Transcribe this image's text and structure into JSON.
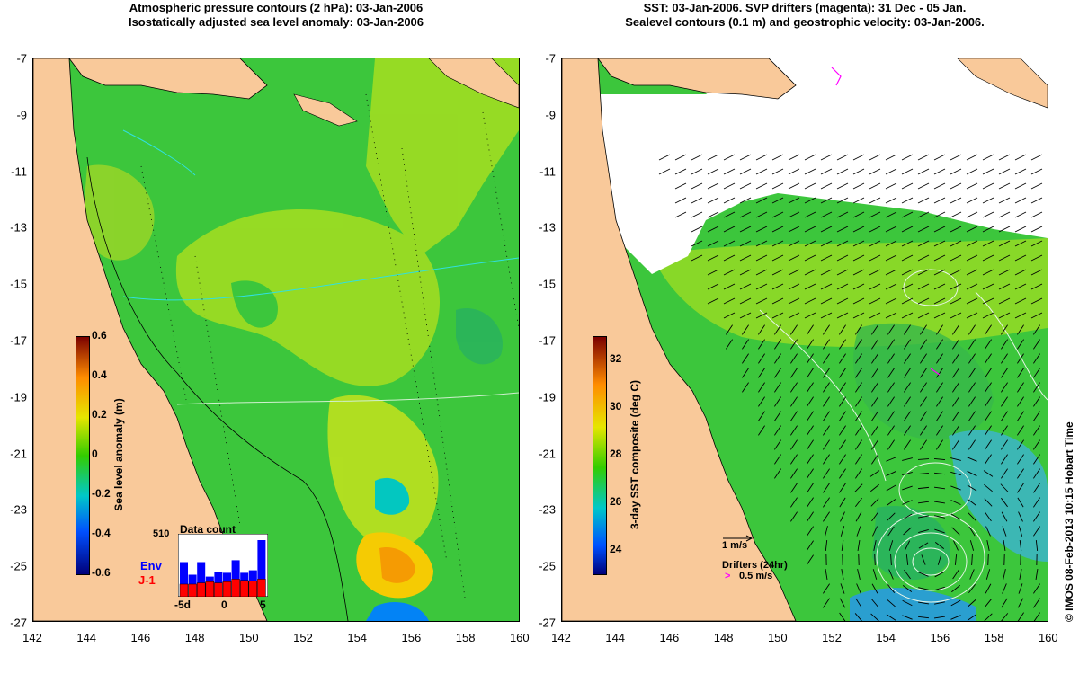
{
  "left_panel": {
    "title_line1": "Atmospheric pressure contours (2 hPa): 03-Jan-2006",
    "title_line2": "Isostatically adjusted sea level anomaly: 03-Jan-2006",
    "colorbar": {
      "label": "Sea level anomaly (m)",
      "ticks": [
        "0.6",
        "0.4",
        "0.2",
        "0",
        "-0.2",
        "-0.4",
        "-0.6"
      ],
      "range": [
        -0.6,
        0.6
      ]
    },
    "inset": {
      "title": "Data count",
      "max_label": "510",
      "legend_env": "Env",
      "legend_j1": "J-1",
      "xticks": [
        "-5d",
        "0",
        "5"
      ],
      "env_color": "#0000ff",
      "j1_color": "#ff0000",
      "env_values": [
        0.55,
        0.35,
        0.55,
        0.32,
        0.4,
        0.38,
        0.58,
        0.38,
        0.42,
        0.9
      ],
      "j1_values": [
        0.2,
        0.2,
        0.22,
        0.24,
        0.22,
        0.24,
        0.28,
        0.26,
        0.25,
        0.28
      ]
    }
  },
  "right_panel": {
    "title_line1": "SST: 03-Jan-2006. SVP drifters (magenta): 31 Dec - 05 Jan.",
    "title_line2": "Sealevel contours (0.1 m) and geostrophic velocity: 03-Jan-2006.",
    "colorbar": {
      "label": "3-day SST composite (deg C)",
      "ticks": [
        "32",
        "30",
        "28",
        "26",
        "24"
      ],
      "range": [
        23,
        33
      ]
    },
    "velocity_legend": "1 m/s",
    "drifters_label": "Drifters (24hr)",
    "drifter_speed": "0.5 m/s",
    "drifter_color": "#ff00ff"
  },
  "x_ticks": [
    "142",
    "144",
    "146",
    "148",
    "150",
    "152",
    "154",
    "156",
    "158",
    "160"
  ],
  "y_ticks": [
    "-7",
    "-9",
    "-11",
    "-13",
    "-15",
    "-17",
    "-19",
    "-21",
    "-23",
    "-25",
    "-27"
  ],
  "credit": "© IMOS 08-Feb-2013 10:15 Hobart Time",
  "colors": {
    "land": "#f9c99a",
    "ocean_green": "#3cc63c",
    "ocean_yellowgreen": "#9bdc23",
    "ocean_cyan": "#3cb7b4"
  }
}
